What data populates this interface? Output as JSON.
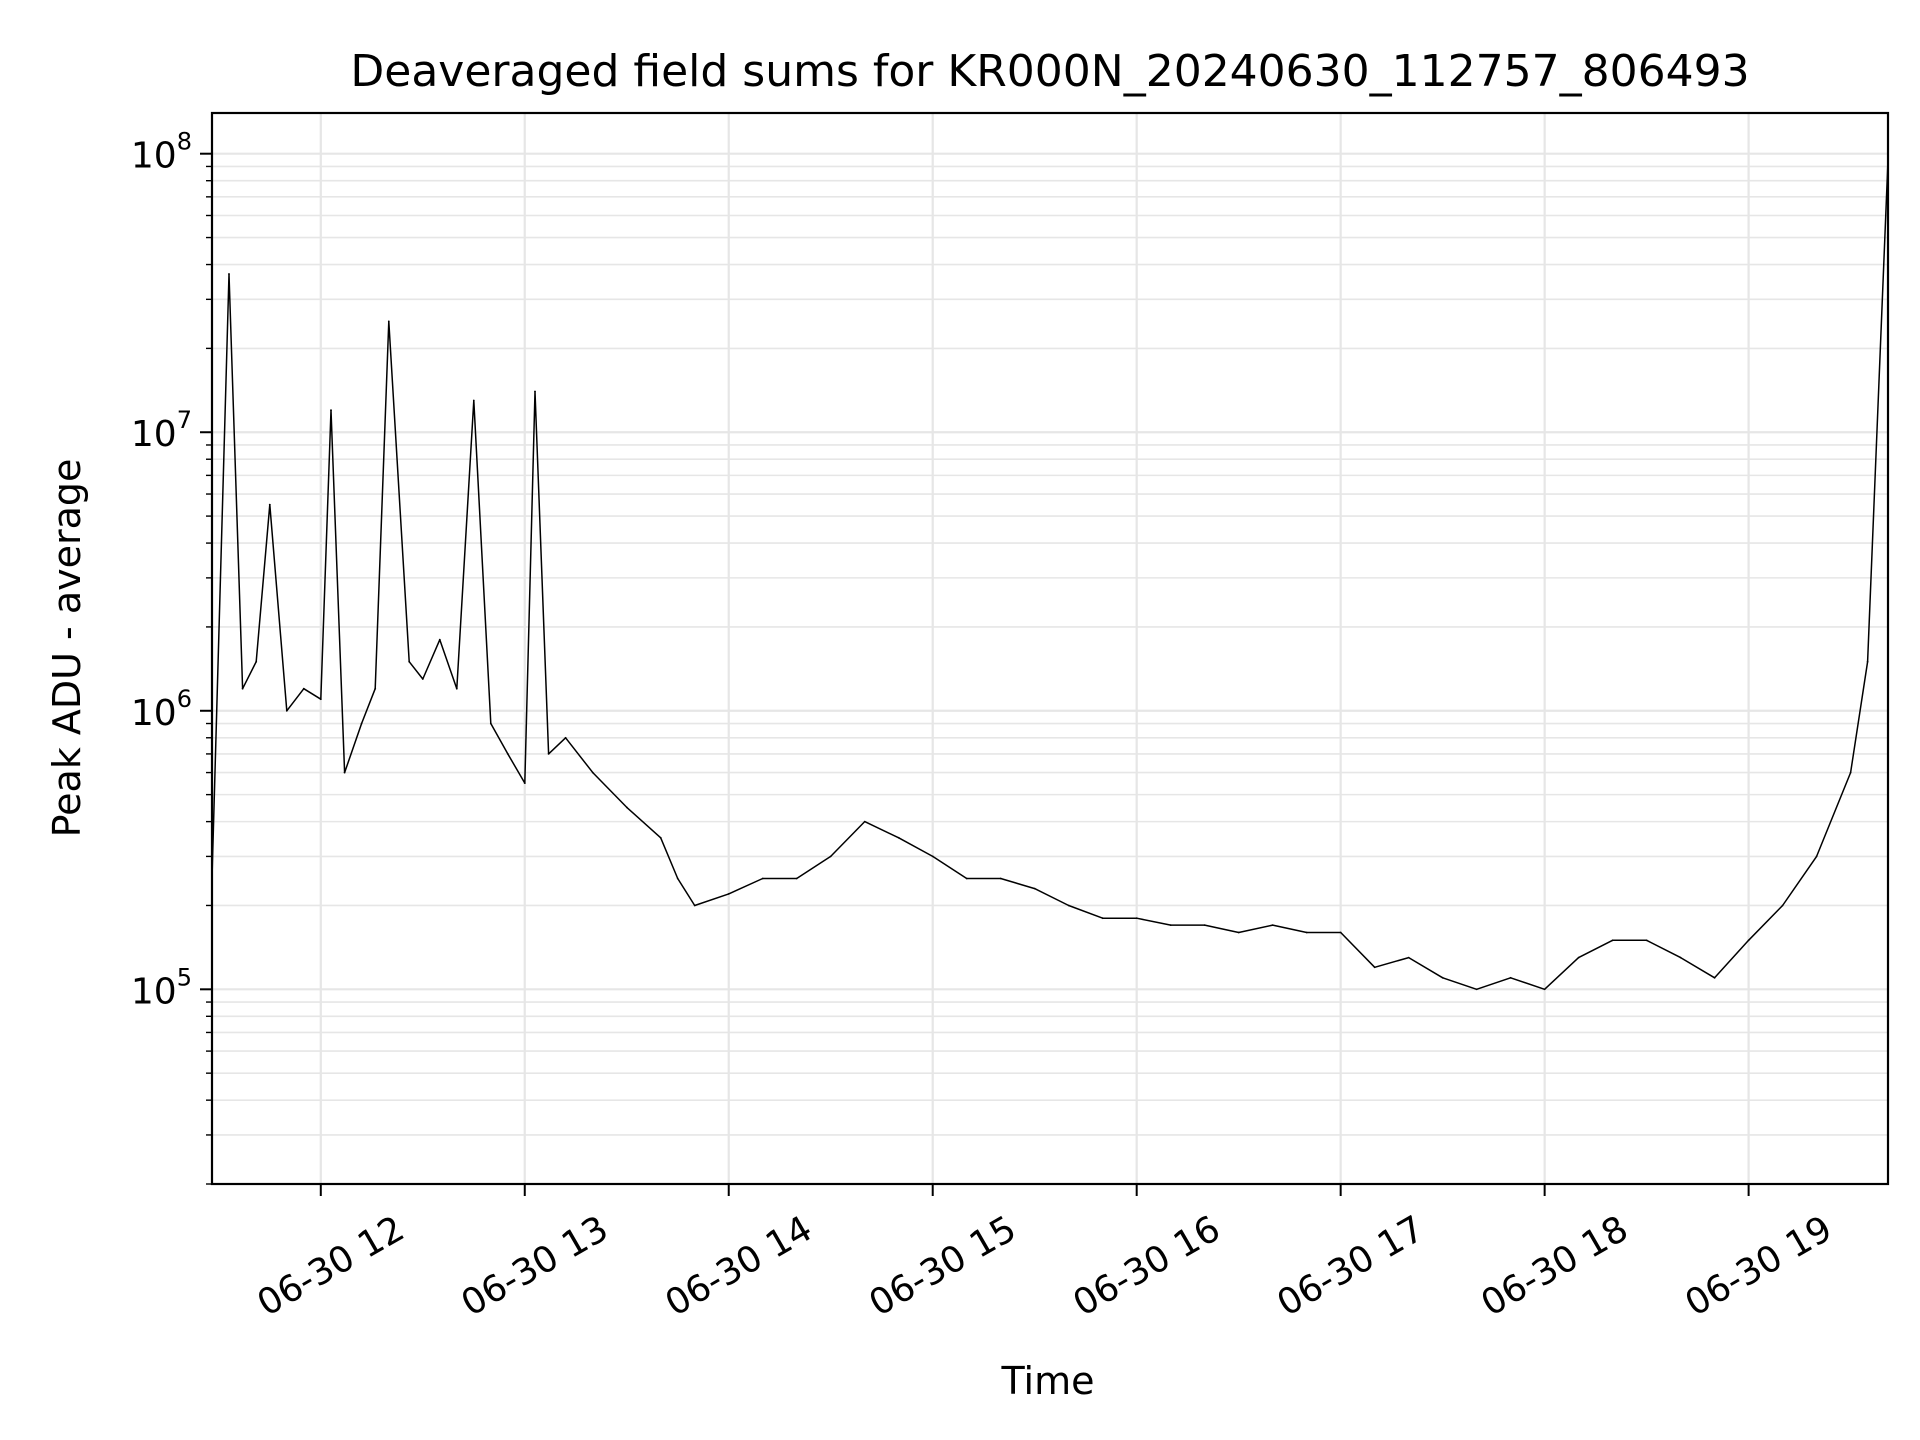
{
  "chart_data": {
    "type": "line",
    "title": "Deaveraged field sums for KR000N_20240630_112757_806493",
    "xlabel": "Time",
    "ylabel": "Peak ADU - average",
    "yscale": "log",
    "ylim": [
      20000,
      140000000
    ],
    "xlim": [
      "06-30 11:28",
      "06-30 19:41"
    ],
    "x_ticks": [
      "06-30 12",
      "06-30 13",
      "06-30 14",
      "06-30 15",
      "06-30 16",
      "06-30 17",
      "06-30 18",
      "06-30 19"
    ],
    "y_ticks": [
      {
        "base": "10",
        "exp": "5",
        "value": 100000
      },
      {
        "base": "10",
        "exp": "6",
        "value": 1000000
      },
      {
        "base": "10",
        "exp": "7",
        "value": 10000000
      },
      {
        "base": "10",
        "exp": "8",
        "value": 100000000
      }
    ],
    "grid": true,
    "line_color": "#000000",
    "series": [
      {
        "x": [
          "06-30 11:28",
          "06-30 11:33",
          "06-30 11:37",
          "06-30 11:41",
          "06-30 11:45",
          "06-30 11:50",
          "06-30 11:55",
          "06-30 12:00",
          "06-30 12:03",
          "06-30 12:07",
          "06-30 12:12",
          "06-30 12:16",
          "06-30 12:20",
          "06-30 12:26",
          "06-30 12:30",
          "06-30 12:35",
          "06-30 12:40",
          "06-30 12:45",
          "06-30 12:50",
          "06-30 12:55",
          "06-30 13:00",
          "06-30 13:03",
          "06-30 13:07",
          "06-30 13:12",
          "06-30 13:20",
          "06-30 13:30",
          "06-30 13:40",
          "06-30 13:45",
          "06-30 13:50",
          "06-30 14:00",
          "06-30 14:10",
          "06-30 14:20",
          "06-30 14:30",
          "06-30 14:40",
          "06-30 14:50",
          "06-30 15:00",
          "06-30 15:10",
          "06-30 15:20",
          "06-30 15:30",
          "06-30 15:40",
          "06-30 15:50",
          "06-30 16:00",
          "06-30 16:10",
          "06-30 16:20",
          "06-30 16:30",
          "06-30 16:40",
          "06-30 16:50",
          "06-30 17:00",
          "06-30 17:10",
          "06-30 17:20",
          "06-30 17:30",
          "06-30 17:40",
          "06-30 17:50",
          "06-30 18:00",
          "06-30 18:10",
          "06-30 18:20",
          "06-30 18:30",
          "06-30 18:40",
          "06-30 18:50",
          "06-30 19:00",
          "06-30 19:10",
          "06-30 19:20",
          "06-30 19:30",
          "06-30 19:35",
          "06-30 19:41"
        ],
        "values": [
          250000,
          37000000,
          1200000,
          1500000,
          5500000,
          1000000,
          1200000,
          1100000,
          12000000,
          600000,
          900000,
          1200000,
          25000000,
          1500000,
          1300000,
          1800000,
          1200000,
          13000000,
          900000,
          700000,
          550000,
          14000000,
          700000,
          800000,
          600000,
          450000,
          350000,
          250000,
          200000,
          220000,
          250000,
          250000,
          300000,
          400000,
          350000,
          300000,
          250000,
          250000,
          230000,
          200000,
          180000,
          180000,
          170000,
          170000,
          160000,
          170000,
          160000,
          160000,
          120000,
          130000,
          110000,
          100000,
          110000,
          100000,
          130000,
          150000,
          150000,
          130000,
          110000,
          150000,
          200000,
          300000,
          600000,
          1500000,
          95000000
        ]
      }
    ]
  }
}
